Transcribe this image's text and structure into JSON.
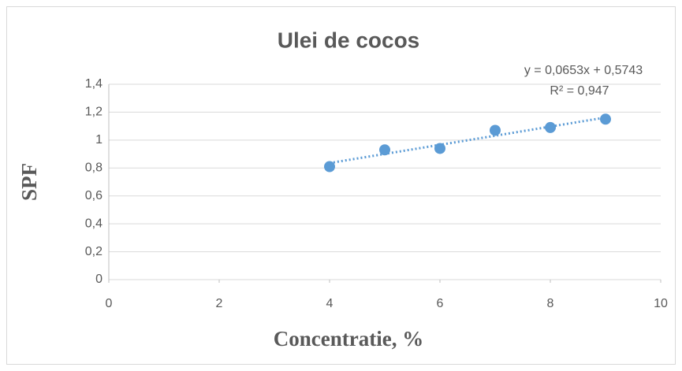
{
  "chart_data": {
    "type": "scatter",
    "title": "Ulei de cocos",
    "x_label": "Concentratie, %",
    "y_label": "SPF",
    "series": [
      {
        "name": "SPF",
        "color": "#5b9bd5",
        "x": [
          4,
          5,
          6,
          7,
          8,
          9
        ],
        "values": [
          0.81,
          0.93,
          0.94,
          1.07,
          1.09,
          1.15
        ]
      }
    ],
    "trendline": {
      "equation": "y = 0,0653x + 0,5743",
      "r2_label": "R² = 0,947",
      "slope": 0.0653,
      "intercept": 0.5743
    },
    "xlim": [
      0,
      10
    ],
    "xticks": [
      0,
      2,
      4,
      6,
      8,
      10
    ],
    "ylim": [
      0,
      1.4
    ],
    "yticks": [
      0,
      {
        "value": 0.2,
        "label": "0,2"
      },
      {
        "value": 0.4,
        "label": "0,4"
      },
      {
        "value": 0.6,
        "label": "0,6"
      },
      {
        "value": 0.8,
        "label": "0,8"
      },
      1,
      {
        "value": 1.2,
        "label": "1,2"
      },
      {
        "value": 1.4,
        "label": "1,4"
      }
    ],
    "grid": true
  }
}
